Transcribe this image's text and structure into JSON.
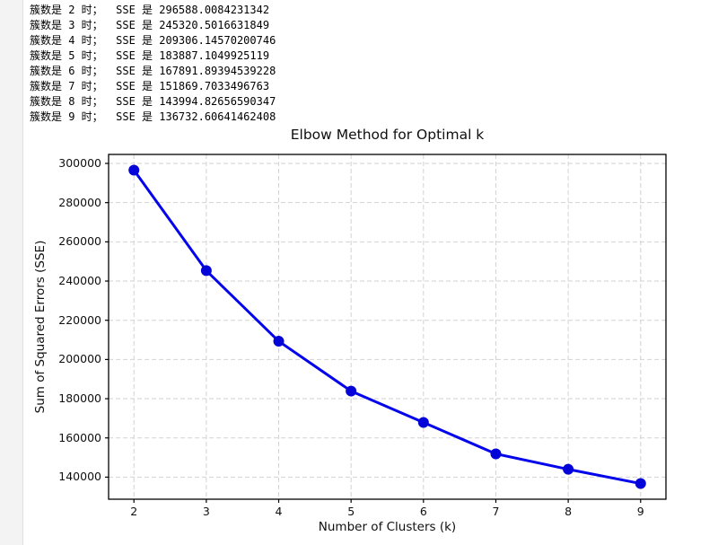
{
  "console": {
    "lines": [
      "簇数是 2 时；  SSE 是 296588.0084231342",
      "簇数是 3 时；  SSE 是 245320.5016631849",
      "簇数是 4 时；  SSE 是 209306.14570200746",
      "簇数是 5 时；  SSE 是 183887.1049925119",
      "簇数是 6 时；  SSE 是 167891.89394539228",
      "簇数是 7 时；  SSE 是 151869.7033496763",
      "簇数是 8 时；  SSE 是 143994.82656590347",
      "簇数是 9 时；  SSE 是 136732.60641462408"
    ]
  },
  "chart_data": {
    "type": "line",
    "title": "Elbow Method for Optimal k",
    "xlabel": "Number of Clusters (k)",
    "ylabel": "Sum of Squared Errors (SSE)",
    "x": [
      2,
      3,
      4,
      5,
      6,
      7,
      8,
      9
    ],
    "y": [
      296588.0084231342,
      245320.5016631849,
      209306.14570200746,
      183887.1049925119,
      167891.89394539228,
      151869.7033496763,
      143994.82656590347,
      136732.60641462408
    ],
    "xticks": [
      2,
      3,
      4,
      5,
      6,
      7,
      8,
      9
    ],
    "yticks": [
      140000,
      160000,
      180000,
      200000,
      220000,
      240000,
      260000,
      280000,
      300000
    ],
    "xlim": [
      1.65,
      9.35
    ],
    "ylim": [
      128739.8,
      304580.8
    ],
    "grid": true,
    "grid_style": "dashed",
    "legend": "none",
    "line_color": "#0404ec",
    "marker_color": "#0404d8",
    "grid_color": "#d2d2d2",
    "axis_color": "#000000"
  }
}
